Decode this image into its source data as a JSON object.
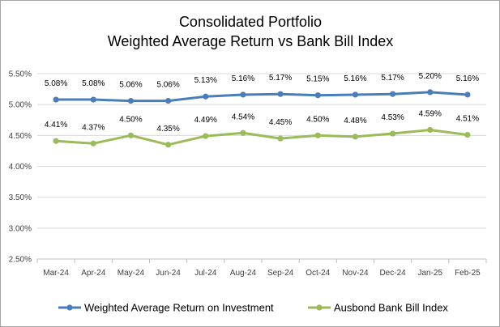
{
  "chart_data": {
    "type": "line",
    "title": "Consolidated Portfolio",
    "subtitle": "Weighted Average Return vs Bank Bill Index",
    "xlabel": "",
    "ylabel": "",
    "categories": [
      "Mar-24",
      "Apr-24",
      "May-24",
      "Jun-24",
      "Jul-24",
      "Aug-24",
      "Sep-24",
      "Oct-24",
      "Nov-24",
      "Dec-24",
      "Jan-25",
      "Feb-25"
    ],
    "ylim": [
      2.5,
      5.5
    ],
    "yticks": [
      2.5,
      3.0,
      3.5,
      4.0,
      4.5,
      5.0,
      5.5
    ],
    "ytick_labels": [
      "2.50%",
      "3.00%",
      "3.50%",
      "4.00%",
      "4.50%",
      "5.00%",
      "5.50%"
    ],
    "grid": true,
    "legend_position": "bottom",
    "series": [
      {
        "name": "Weighted Average Return on Investment",
        "color": "#4a7ebb",
        "values": [
          5.08,
          5.08,
          5.06,
          5.06,
          5.13,
          5.16,
          5.17,
          5.15,
          5.16,
          5.17,
          5.2,
          5.16
        ],
        "labels": [
          "5.08%",
          "5.08%",
          "5.06%",
          "5.06%",
          "5.13%",
          "5.16%",
          "5.17%",
          "5.15%",
          "5.16%",
          "5.17%",
          "5.20%",
          "5.16%"
        ]
      },
      {
        "name": "Ausbond Bank Bill Index",
        "color": "#9bbb59",
        "values": [
          4.41,
          4.37,
          4.5,
          4.35,
          4.49,
          4.54,
          4.45,
          4.5,
          4.48,
          4.53,
          4.59,
          4.51
        ],
        "labels": [
          "4.41%",
          "4.37%",
          "4.50%",
          "4.35%",
          "4.49%",
          "4.54%",
          "4.45%",
          "4.50%",
          "4.48%",
          "4.53%",
          "4.59%",
          "4.51%"
        ]
      }
    ]
  }
}
